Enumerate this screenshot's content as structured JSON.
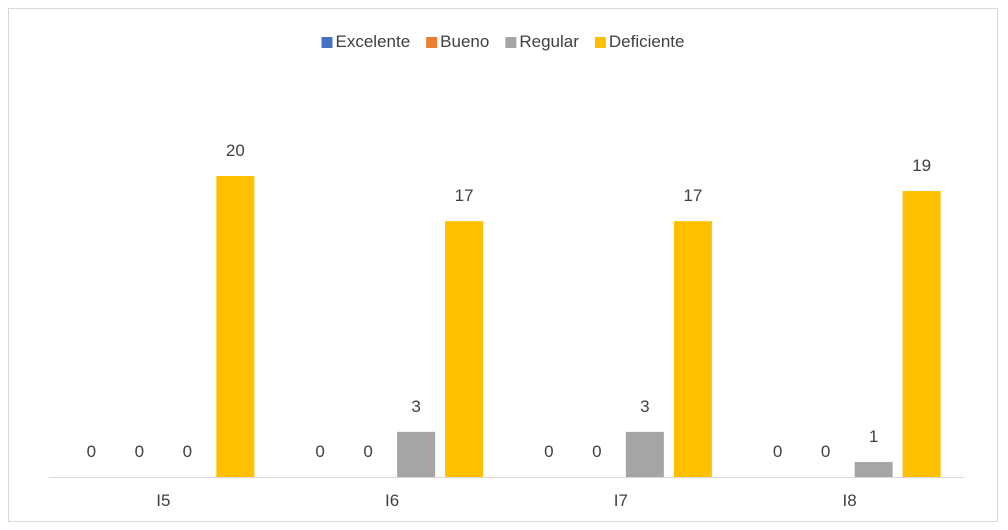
{
  "chart_data": {
    "type": "bar",
    "title": "",
    "xlabel": "",
    "ylabel": "",
    "categories": [
      "I5",
      "I6",
      "I7",
      "I8"
    ],
    "series": [
      {
        "name": "Excelente",
        "color": "#4472c4",
        "values": [
          0,
          0,
          0,
          0
        ]
      },
      {
        "name": "Bueno",
        "color": "#ed7d31",
        "values": [
          0,
          0,
          0,
          0
        ]
      },
      {
        "name": "Regular",
        "color": "#a5a5a5",
        "values": [
          0,
          3,
          3,
          1
        ]
      },
      {
        "name": "Deficiente",
        "color": "#ffc000",
        "values": [
          20,
          17,
          17,
          19
        ]
      }
    ],
    "ylim": [
      0,
      22
    ],
    "legend_position": "top",
    "grid": false,
    "data_labels": true
  }
}
